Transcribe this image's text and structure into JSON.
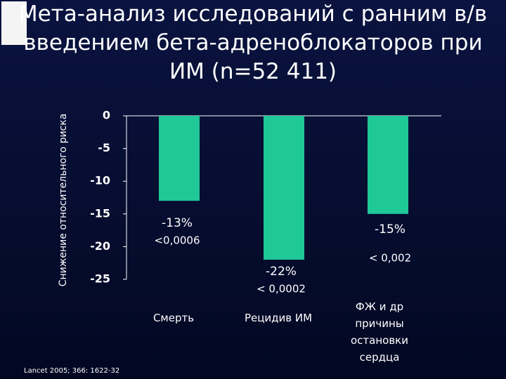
{
  "chart_data": {
    "type": "bar",
    "title": "Мета-анализ исследований с ранним в/в введением бета-адреноблокаторов при ИМ (n=52 411)",
    "y_label": "Снижение относительного риска",
    "categories": [
      "Смерть",
      "Рецидив ИМ",
      "ФЖ и др причины остановки сердца"
    ],
    "values": [
      -13,
      -22,
      -15
    ],
    "value_labels": [
      "-13%",
      "-22%",
      "-15%"
    ],
    "p_value_labels": [
      "<0,0006",
      "< 0,0002",
      "< 0,002"
    ],
    "color": "#1fc896",
    "ylim": [
      -25,
      0
    ],
    "yticks": [
      0,
      -5,
      -10,
      -15,
      -20,
      -25
    ],
    "grid": false,
    "source": "Lancet 2005; 366: 1622-32"
  }
}
